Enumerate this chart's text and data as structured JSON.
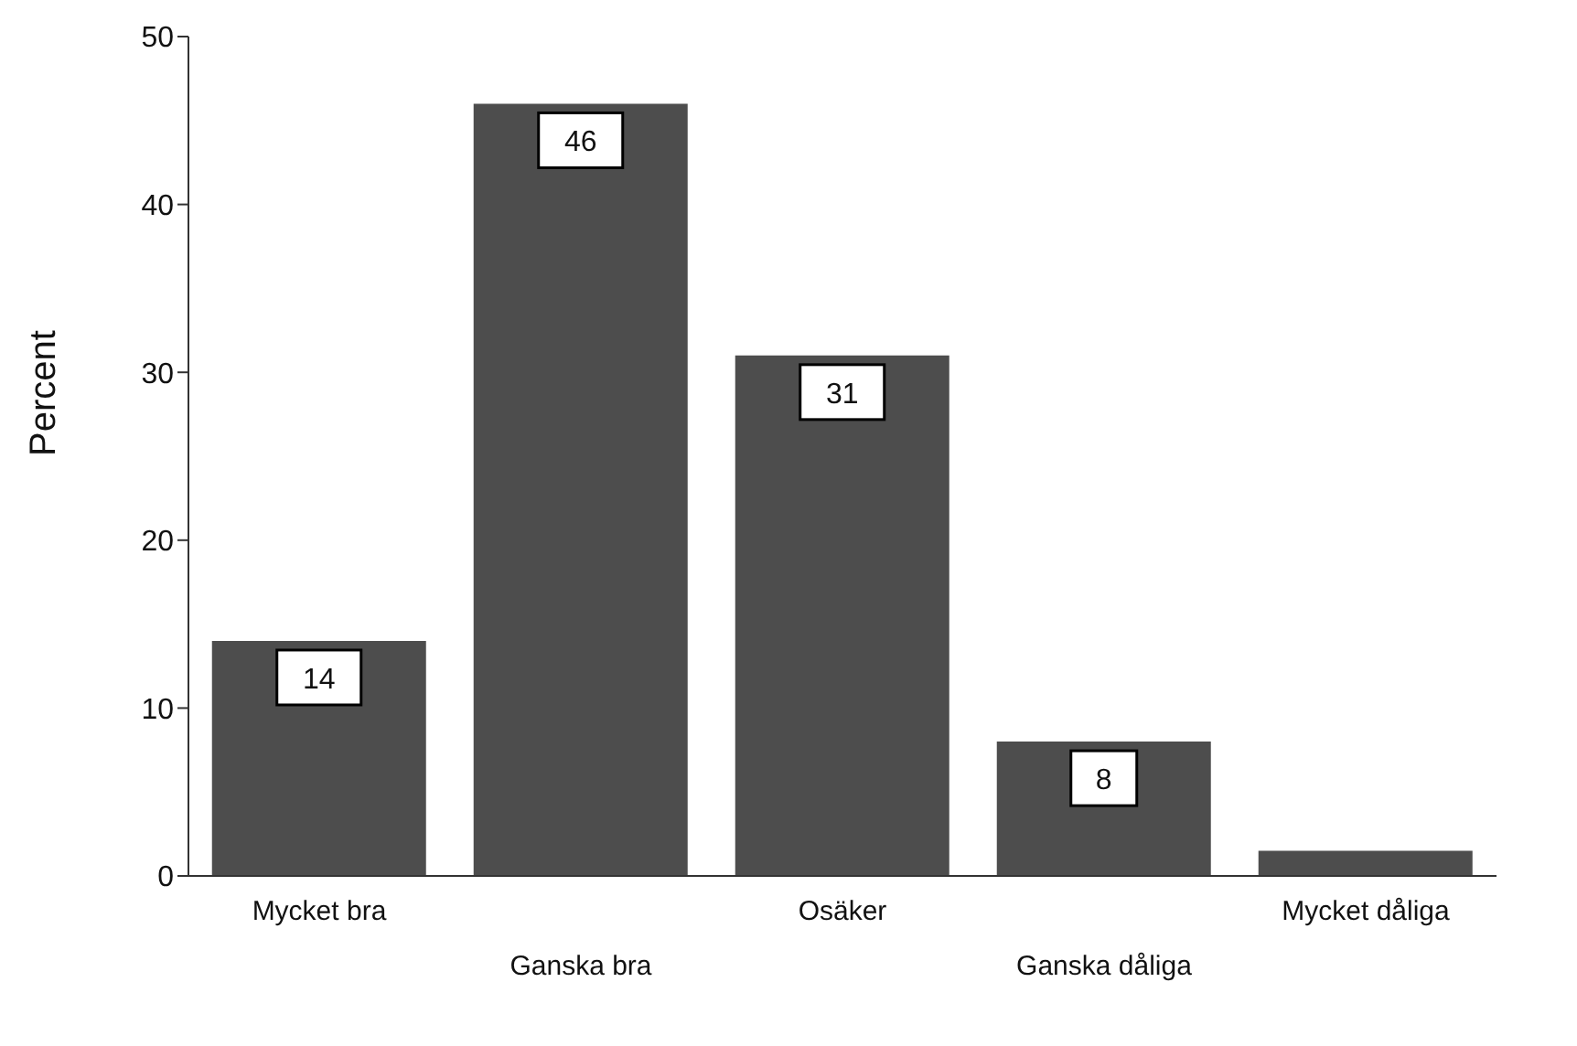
{
  "chart_data": {
    "type": "bar",
    "ylabel": "Percent",
    "categories": [
      "Mycket bra",
      "Ganska bra",
      "Osäker",
      "Ganska dåliga",
      "Mycket dåliga"
    ],
    "values": [
      14,
      46,
      31,
      8,
      1.5
    ],
    "value_labels": [
      "14",
      "46",
      "31",
      "8",
      null
    ],
    "color": "#4d4d4d",
    "ylim": [
      0,
      50
    ],
    "yticks": [
      0,
      10,
      20,
      30,
      40,
      50
    ],
    "grid": false,
    "legend": false
  }
}
